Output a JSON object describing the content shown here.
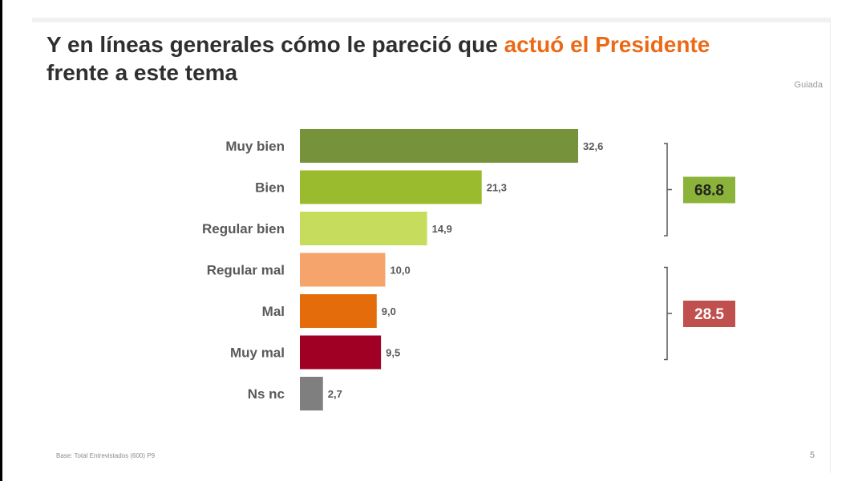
{
  "title": {
    "part1": "Y en líneas generales cómo le pareció que ",
    "highlight": "actuó el Presidente",
    "part2": "frente a este tema"
  },
  "brand": "Guiada",
  "footer": "Base: Total Entrevistados (600) P9",
  "page_number": "5",
  "colors": {
    "title": "#2f2f2f",
    "highlight": "#ec6a17",
    "positive_box": "#8bb33a",
    "negative_box": "#c0504d"
  },
  "chart_data": {
    "type": "bar",
    "orientation": "horizontal",
    "categories": [
      "Muy bien",
      "Bien",
      "Regular bien",
      "Regular mal",
      "Mal",
      "Muy mal",
      "Ns nc"
    ],
    "values": [
      32.6,
      21.3,
      14.9,
      10.0,
      9.0,
      9.5,
      2.7
    ],
    "value_labels": [
      "32,6",
      "21,3",
      "14,9",
      "10,0",
      "9,0",
      "9,5",
      "2,7"
    ],
    "bar_colors": [
      "#76933c",
      "#9bbb2f",
      "#c5dc5c",
      "#f5a46b",
      "#e46c0a",
      "#a00024",
      "#7f7f7f"
    ],
    "groups": [
      {
        "label": "68.8",
        "from": 0,
        "to": 2,
        "color": "#8bb33a"
      },
      {
        "label": "28.5",
        "from": 3,
        "to": 5,
        "color": "#c0504d"
      }
    ],
    "xlim": [
      0,
      32.6
    ],
    "grid": false,
    "legend": "none"
  }
}
